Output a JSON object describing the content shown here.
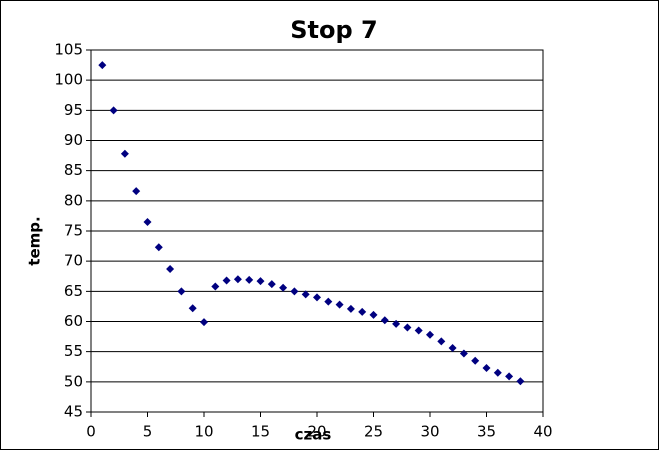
{
  "chart_data": {
    "type": "scatter",
    "title": "Stop 7",
    "xlabel": "czas",
    "ylabel": "temp.",
    "x": [
      1,
      2,
      3,
      4,
      5,
      6,
      7,
      8,
      9,
      10,
      11,
      12,
      13,
      14,
      15,
      16,
      17,
      18,
      19,
      20,
      21,
      22,
      23,
      24,
      25,
      26,
      27,
      28,
      29,
      30,
      31,
      32,
      33,
      34,
      35,
      36,
      37,
      38
    ],
    "values": [
      102.5,
      95,
      87.8,
      81.6,
      76.5,
      72.3,
      68.7,
      65,
      62.2,
      59.9,
      65.8,
      66.8,
      67,
      66.9,
      66.7,
      66.2,
      65.6,
      65,
      64.5,
      64,
      63.3,
      62.8,
      62.1,
      61.6,
      61.1,
      60.2,
      59.6,
      59,
      58.5,
      57.8,
      56.7,
      55.6,
      54.7,
      53.5,
      52.3,
      51.5,
      50.9,
      50.1
    ],
    "color": "#000080",
    "xlim": [
      0,
      40
    ],
    "xticks": [
      0,
      5,
      10,
      15,
      20,
      25,
      30,
      35,
      40
    ],
    "ylim": [
      45,
      105
    ],
    "yticks": [
      45,
      50,
      55,
      60,
      65,
      70,
      75,
      80,
      85,
      90,
      95,
      100,
      105
    ],
    "grid": true
  }
}
